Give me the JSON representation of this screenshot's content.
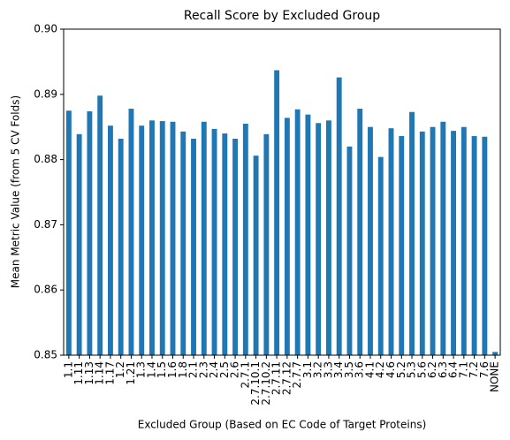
{
  "chart_data": {
    "type": "bar",
    "title": "Recall Score by Excluded Group",
    "x_label": "Excluded Group (Based on EC Code of Target Proteins)",
    "y_label": "Mean Metric Value (from 5 CV Folds)",
    "categories": [
      "1.1",
      "1.11",
      "1.13",
      "1.14",
      "1.17",
      "1.2",
      "1.21",
      "1.3",
      "1.4",
      "1.5",
      "1.6",
      "1.8",
      "2.1",
      "2.3",
      "2.4",
      "2.5",
      "2.6",
      "2.7.1",
      "2.7.10.1",
      "2.7.10.2",
      "2.7.11",
      "2.7.12",
      "2.7.7",
      "3.1",
      "3.2",
      "3.3",
      "3.4",
      "3.5",
      "3.6",
      "4.1",
      "4.2",
      "4.6",
      "5.2",
      "5.3",
      "5.6",
      "6.2",
      "6.3",
      "6.4",
      "7.1",
      "7.2",
      "7.6",
      "NONE"
    ],
    "values": [
      0.8875,
      0.8839,
      0.8874,
      0.8898,
      0.8852,
      0.8832,
      0.8878,
      0.8852,
      0.886,
      0.8859,
      0.8858,
      0.8843,
      0.8832,
      0.8858,
      0.8847,
      0.884,
      0.8832,
      0.8855,
      0.8806,
      0.8839,
      0.8937,
      0.8864,
      0.8877,
      0.8869,
      0.8856,
      0.886,
      0.8926,
      0.882,
      0.8878,
      0.885,
      0.8804,
      0.8848,
      0.8836,
      0.8873,
      0.8843,
      0.885,
      0.8858,
      0.8844,
      0.885,
      0.8836,
      0.8835,
      0.8505
    ],
    "color": "#1f77b4",
    "ylim": [
      0.85,
      0.9
    ],
    "yticks": [
      0.85,
      0.86,
      0.87,
      0.88,
      0.89,
      {
        "value": 0.9,
        "label": "0.90"
      }
    ],
    "grid": false
  }
}
